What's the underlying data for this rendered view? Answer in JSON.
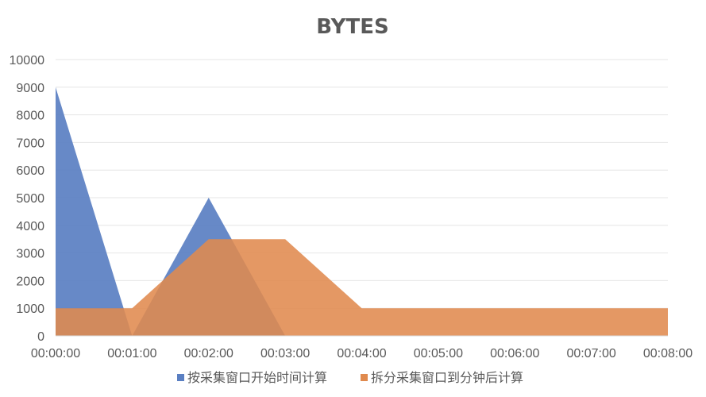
{
  "chart_data": {
    "type": "area",
    "title": "BYTES",
    "xlabel": "",
    "ylabel": "",
    "categories": [
      "00:00:00",
      "00:01:00",
      "00:02:00",
      "00:03:00",
      "00:04:00",
      "00:05:00",
      "00:06:00",
      "00:07:00",
      "00:08:00"
    ],
    "ylim": [
      0,
      10000
    ],
    "yticks": [
      0,
      1000,
      2000,
      3000,
      4000,
      5000,
      6000,
      7000,
      8000,
      9000,
      10000
    ],
    "grid": true,
    "legend_position": "bottom",
    "series": [
      {
        "name": "按采集窗口开始时间计算",
        "color": "#5a7fc2",
        "values": [
          9000,
          0,
          5000,
          0,
          0,
          0,
          0,
          0,
          0
        ]
      },
      {
        "name": "拆分采集窗口到分钟后计算",
        "color": "#e08a4e",
        "values": [
          1000,
          1000,
          3500,
          3500,
          1000,
          1000,
          1000,
          1000,
          1000
        ]
      }
    ]
  }
}
